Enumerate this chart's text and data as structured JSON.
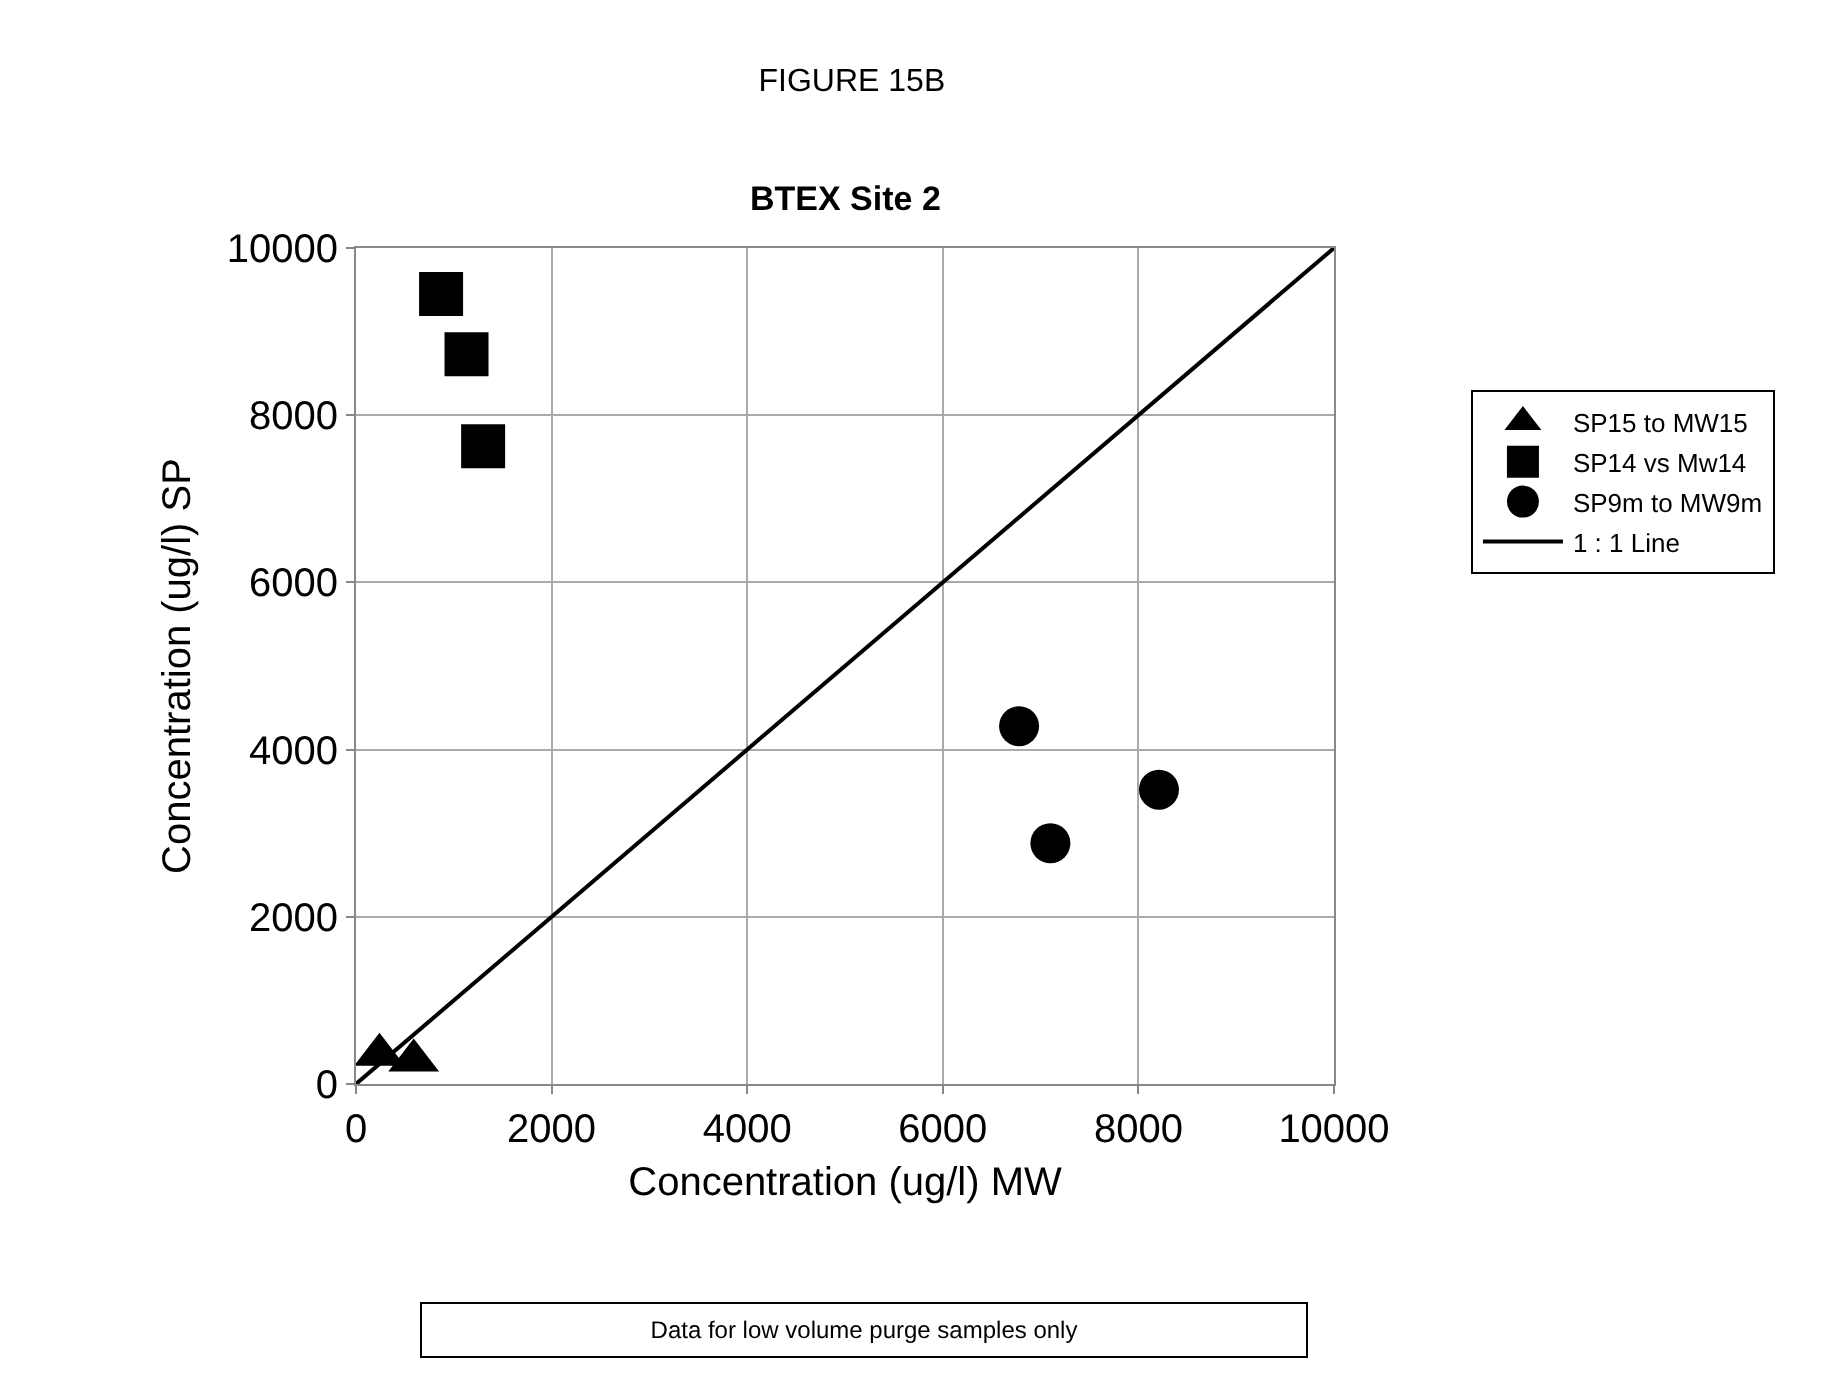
{
  "chart_data": {
    "type": "scatter",
    "title": "FIGURE 15B",
    "subtitle": "BTEX Site 2",
    "xlabel": "Concentration (ug/l) MW",
    "ylabel": "Concentration (ug/l) SP",
    "xlim": [
      0,
      10000
    ],
    "xticks": [
      0,
      2000,
      4000,
      6000,
      8000,
      10000
    ],
    "ylim": [
      0,
      10000
    ],
    "yticks": [
      0,
      2000,
      4000,
      6000,
      8000,
      10000
    ],
    "grid": true,
    "legend": "right",
    "annotations": [
      "Data for low volume purge samples only"
    ],
    "series": [
      {
        "name": "SP15 to MW15",
        "color": "#000000",
        "marker": "triangle",
        "x": [
          240,
          590
        ],
        "values": [
          350,
          280
        ]
      },
      {
        "name": "SP14 vs Mw14",
        "color": "#000000",
        "marker": "square",
        "x": [
          870,
          1130,
          1300
        ],
        "values": [
          9450,
          8730,
          7630
        ]
      },
      {
        "name": "SP9m to MW9m",
        "color": "#000000",
        "marker": "circle",
        "x": [
          6780,
          8210,
          7100
        ],
        "values": [
          4280,
          3520,
          2880
        ]
      },
      {
        "name": "1 : 1 Line",
        "type": "line",
        "color": "#000000",
        "marker": "none",
        "line_style": "solid",
        "x": [
          0,
          10000
        ],
        "values": [
          0,
          10000
        ]
      }
    ]
  }
}
